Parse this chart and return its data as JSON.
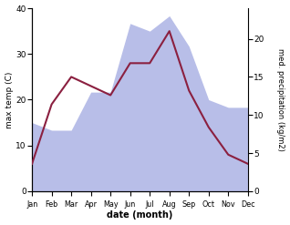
{
  "months": [
    "Jan",
    "Feb",
    "Mar",
    "Apr",
    "May",
    "Jun",
    "Jul",
    "Aug",
    "Sep",
    "Oct",
    "Nov",
    "Dec"
  ],
  "temp_max": [
    6,
    19,
    25,
    23,
    21,
    28,
    28,
    35,
    22,
    14,
    8,
    6
  ],
  "precipitation": [
    9,
    8,
    8,
    13,
    13,
    22,
    21,
    23,
    19,
    12,
    11,
    11
  ],
  "temp_ylim": [
    0,
    40
  ],
  "precip_ylim": [
    0,
    24
  ],
  "temp_color": "#8B2040",
  "precip_fill_color": "#b8bee8",
  "ylabel_left": "max temp (C)",
  "ylabel_right": "med. precipitation (kg/m2)",
  "xlabel": "date (month)",
  "bg_color": "#ffffff",
  "right_yticks": [
    0,
    5,
    10,
    15,
    20
  ],
  "left_yticks": [
    0,
    10,
    20,
    30,
    40
  ]
}
